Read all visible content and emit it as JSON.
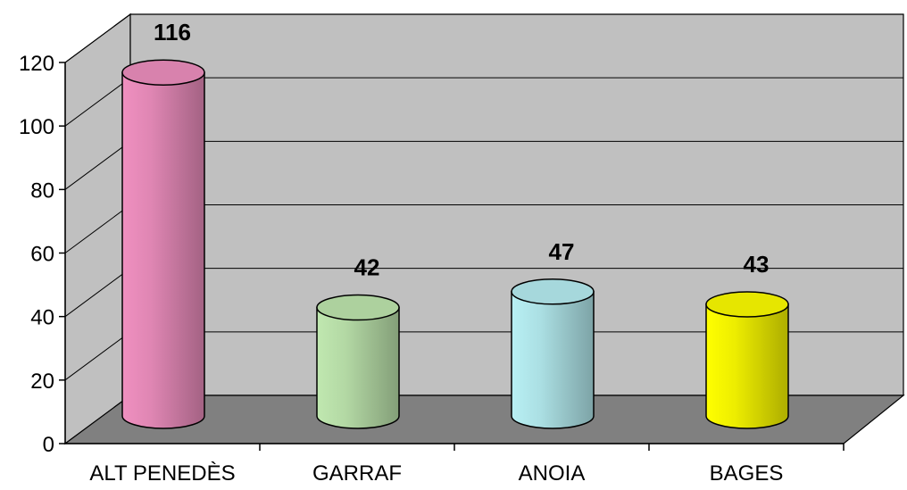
{
  "chart_data": {
    "type": "bar",
    "style": "3d-cylinder",
    "title": "",
    "xlabel": "",
    "ylabel": "",
    "categories": [
      "ALT PENEDÈS",
      "GARRAF",
      "ANOIA",
      "BAGES"
    ],
    "values": [
      116,
      42,
      47,
      43
    ],
    "data_labels": [
      "116",
      "42",
      "47",
      "43"
    ],
    "ylim": [
      0,
      120
    ],
    "yticks": [
      "0",
      "20",
      "40",
      "60",
      "80",
      "100",
      "120"
    ],
    "grid": true,
    "legend": "none",
    "colors": {
      "bars": [
        "#f090c0",
        "#c0e8b0",
        "#b8f0f4",
        "#ffff00"
      ],
      "walls": "#c0c0c0",
      "floor": "#808080"
    }
  }
}
